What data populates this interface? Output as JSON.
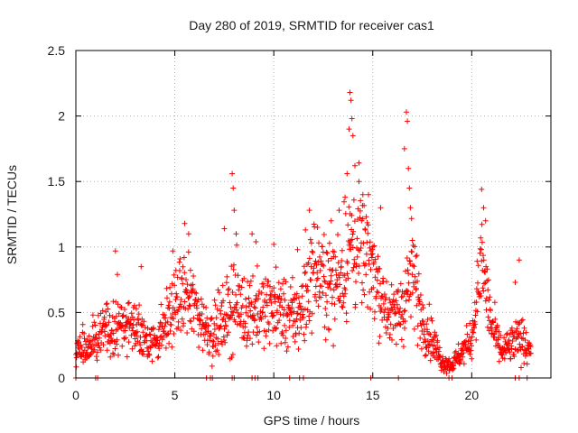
{
  "chart_data": {
    "type": "scatter",
    "title": "Day 280 of 2019, SRMTID for receiver cas1",
    "xlabel": "GPS time / hours",
    "ylabel": "SRMTID / TECUs",
    "xlim": [
      0,
      24.0
    ],
    "ylim": [
      0,
      2.5
    ],
    "xticks": [
      0,
      5,
      10,
      15,
      20
    ],
    "xtick_labels": [
      "0",
      "5",
      "10",
      "15",
      "20"
    ],
    "yticks": [
      0,
      0.5,
      1,
      1.5,
      2,
      2.5
    ],
    "ytick_labels": [
      "0",
      "0.5",
      "1",
      "1.5",
      "2",
      "2.5"
    ],
    "grid": true,
    "marker": "+",
    "marker_color": "#ff0000",
    "series": [
      {
        "name": "SRMTID",
        "envelope": {
          "hours": [
            0,
            0.5,
            1,
            1.5,
            2,
            2.5,
            3,
            3.5,
            4,
            4.5,
            5,
            5.5,
            6,
            6.5,
            7,
            7.5,
            8,
            8.5,
            9,
            9.5,
            10,
            10.5,
            11,
            11.5,
            12,
            12.5,
            13,
            13.5,
            14,
            14.5,
            15,
            15.5,
            16,
            16.5,
            17,
            17.5,
            18,
            18.5,
            19,
            19.5,
            20,
            20.5,
            21,
            21.5,
            22,
            22.5,
            23
          ],
          "center": [
            0.2,
            0.22,
            0.3,
            0.35,
            0.4,
            0.4,
            0.38,
            0.3,
            0.28,
            0.4,
            0.55,
            0.65,
            0.55,
            0.4,
            0.35,
            0.45,
            0.6,
            0.5,
            0.55,
            0.5,
            0.55,
            0.5,
            0.45,
            0.55,
            0.85,
            0.75,
            0.7,
            0.85,
            1.05,
            0.95,
            0.85,
            0.6,
            0.45,
            0.55,
            0.8,
            0.45,
            0.3,
            0.12,
            0.1,
            0.2,
            0.3,
            0.9,
            0.4,
            0.2,
            0.25,
            0.3,
            0.22
          ],
          "spread": [
            0.08,
            0.1,
            0.12,
            0.15,
            0.15,
            0.15,
            0.15,
            0.12,
            0.12,
            0.15,
            0.18,
            0.2,
            0.2,
            0.15,
            0.15,
            0.18,
            0.25,
            0.2,
            0.2,
            0.2,
            0.2,
            0.2,
            0.18,
            0.25,
            0.25,
            0.25,
            0.25,
            0.3,
            0.4,
            0.3,
            0.25,
            0.2,
            0.15,
            0.2,
            0.3,
            0.15,
            0.12,
            0.05,
            0.04,
            0.08,
            0.1,
            0.25,
            0.15,
            0.08,
            0.1,
            0.12,
            0.08
          ]
        },
        "spikes": [
          {
            "x": 2.0,
            "y": 0.97
          },
          {
            "x": 2.1,
            "y": 0.79
          },
          {
            "x": 3.3,
            "y": 0.85
          },
          {
            "x": 4.9,
            "y": 0.97
          },
          {
            "x": 5.5,
            "y": 1.18
          },
          {
            "x": 5.7,
            "y": 1.1
          },
          {
            "x": 7.5,
            "y": 1.14
          },
          {
            "x": 7.9,
            "y": 1.56
          },
          {
            "x": 7.95,
            "y": 1.45
          },
          {
            "x": 8.0,
            "y": 1.28
          },
          {
            "x": 8.1,
            "y": 1.1
          },
          {
            "x": 8.9,
            "y": 1.1
          },
          {
            "x": 9.1,
            "y": 1.04
          },
          {
            "x": 10.0,
            "y": 1.02
          },
          {
            "x": 11.2,
            "y": 0.98
          },
          {
            "x": 11.6,
            "y": 1.13
          },
          {
            "x": 11.8,
            "y": 1.28
          },
          {
            "x": 12.9,
            "y": 1.2
          },
          {
            "x": 13.3,
            "y": 1.28
          },
          {
            "x": 13.6,
            "y": 1.38
          },
          {
            "x": 13.7,
            "y": 1.56
          },
          {
            "x": 13.8,
            "y": 1.9
          },
          {
            "x": 13.85,
            "y": 2.18
          },
          {
            "x": 13.9,
            "y": 2.12
          },
          {
            "x": 13.95,
            "y": 1.98
          },
          {
            "x": 14.0,
            "y": 1.85
          },
          {
            "x": 14.1,
            "y": 1.62
          },
          {
            "x": 14.3,
            "y": 1.5
          },
          {
            "x": 14.5,
            "y": 1.4
          },
          {
            "x": 15.4,
            "y": 1.3
          },
          {
            "x": 16.6,
            "y": 1.75
          },
          {
            "x": 16.7,
            "y": 2.03
          },
          {
            "x": 16.75,
            "y": 1.96
          },
          {
            "x": 16.8,
            "y": 1.6
          },
          {
            "x": 16.85,
            "y": 1.45
          },
          {
            "x": 16.9,
            "y": 1.3
          },
          {
            "x": 17.0,
            "y": 1.05
          },
          {
            "x": 20.5,
            "y": 1.44
          },
          {
            "x": 20.6,
            "y": 1.3
          },
          {
            "x": 20.7,
            "y": 1.2
          },
          {
            "x": 22.2,
            "y": 0.73
          },
          {
            "x": 22.4,
            "y": 0.9
          }
        ],
        "zero_values_hours": [
          0.0,
          1.0,
          1.1,
          6.6,
          6.8,
          6.9,
          7.9,
          8.0,
          8.9,
          9.05,
          9.2,
          10.8,
          11.3,
          11.5,
          14.9,
          16.3,
          18.85,
          19.0,
          22.2,
          22.4,
          22.8
        ]
      }
    ]
  }
}
